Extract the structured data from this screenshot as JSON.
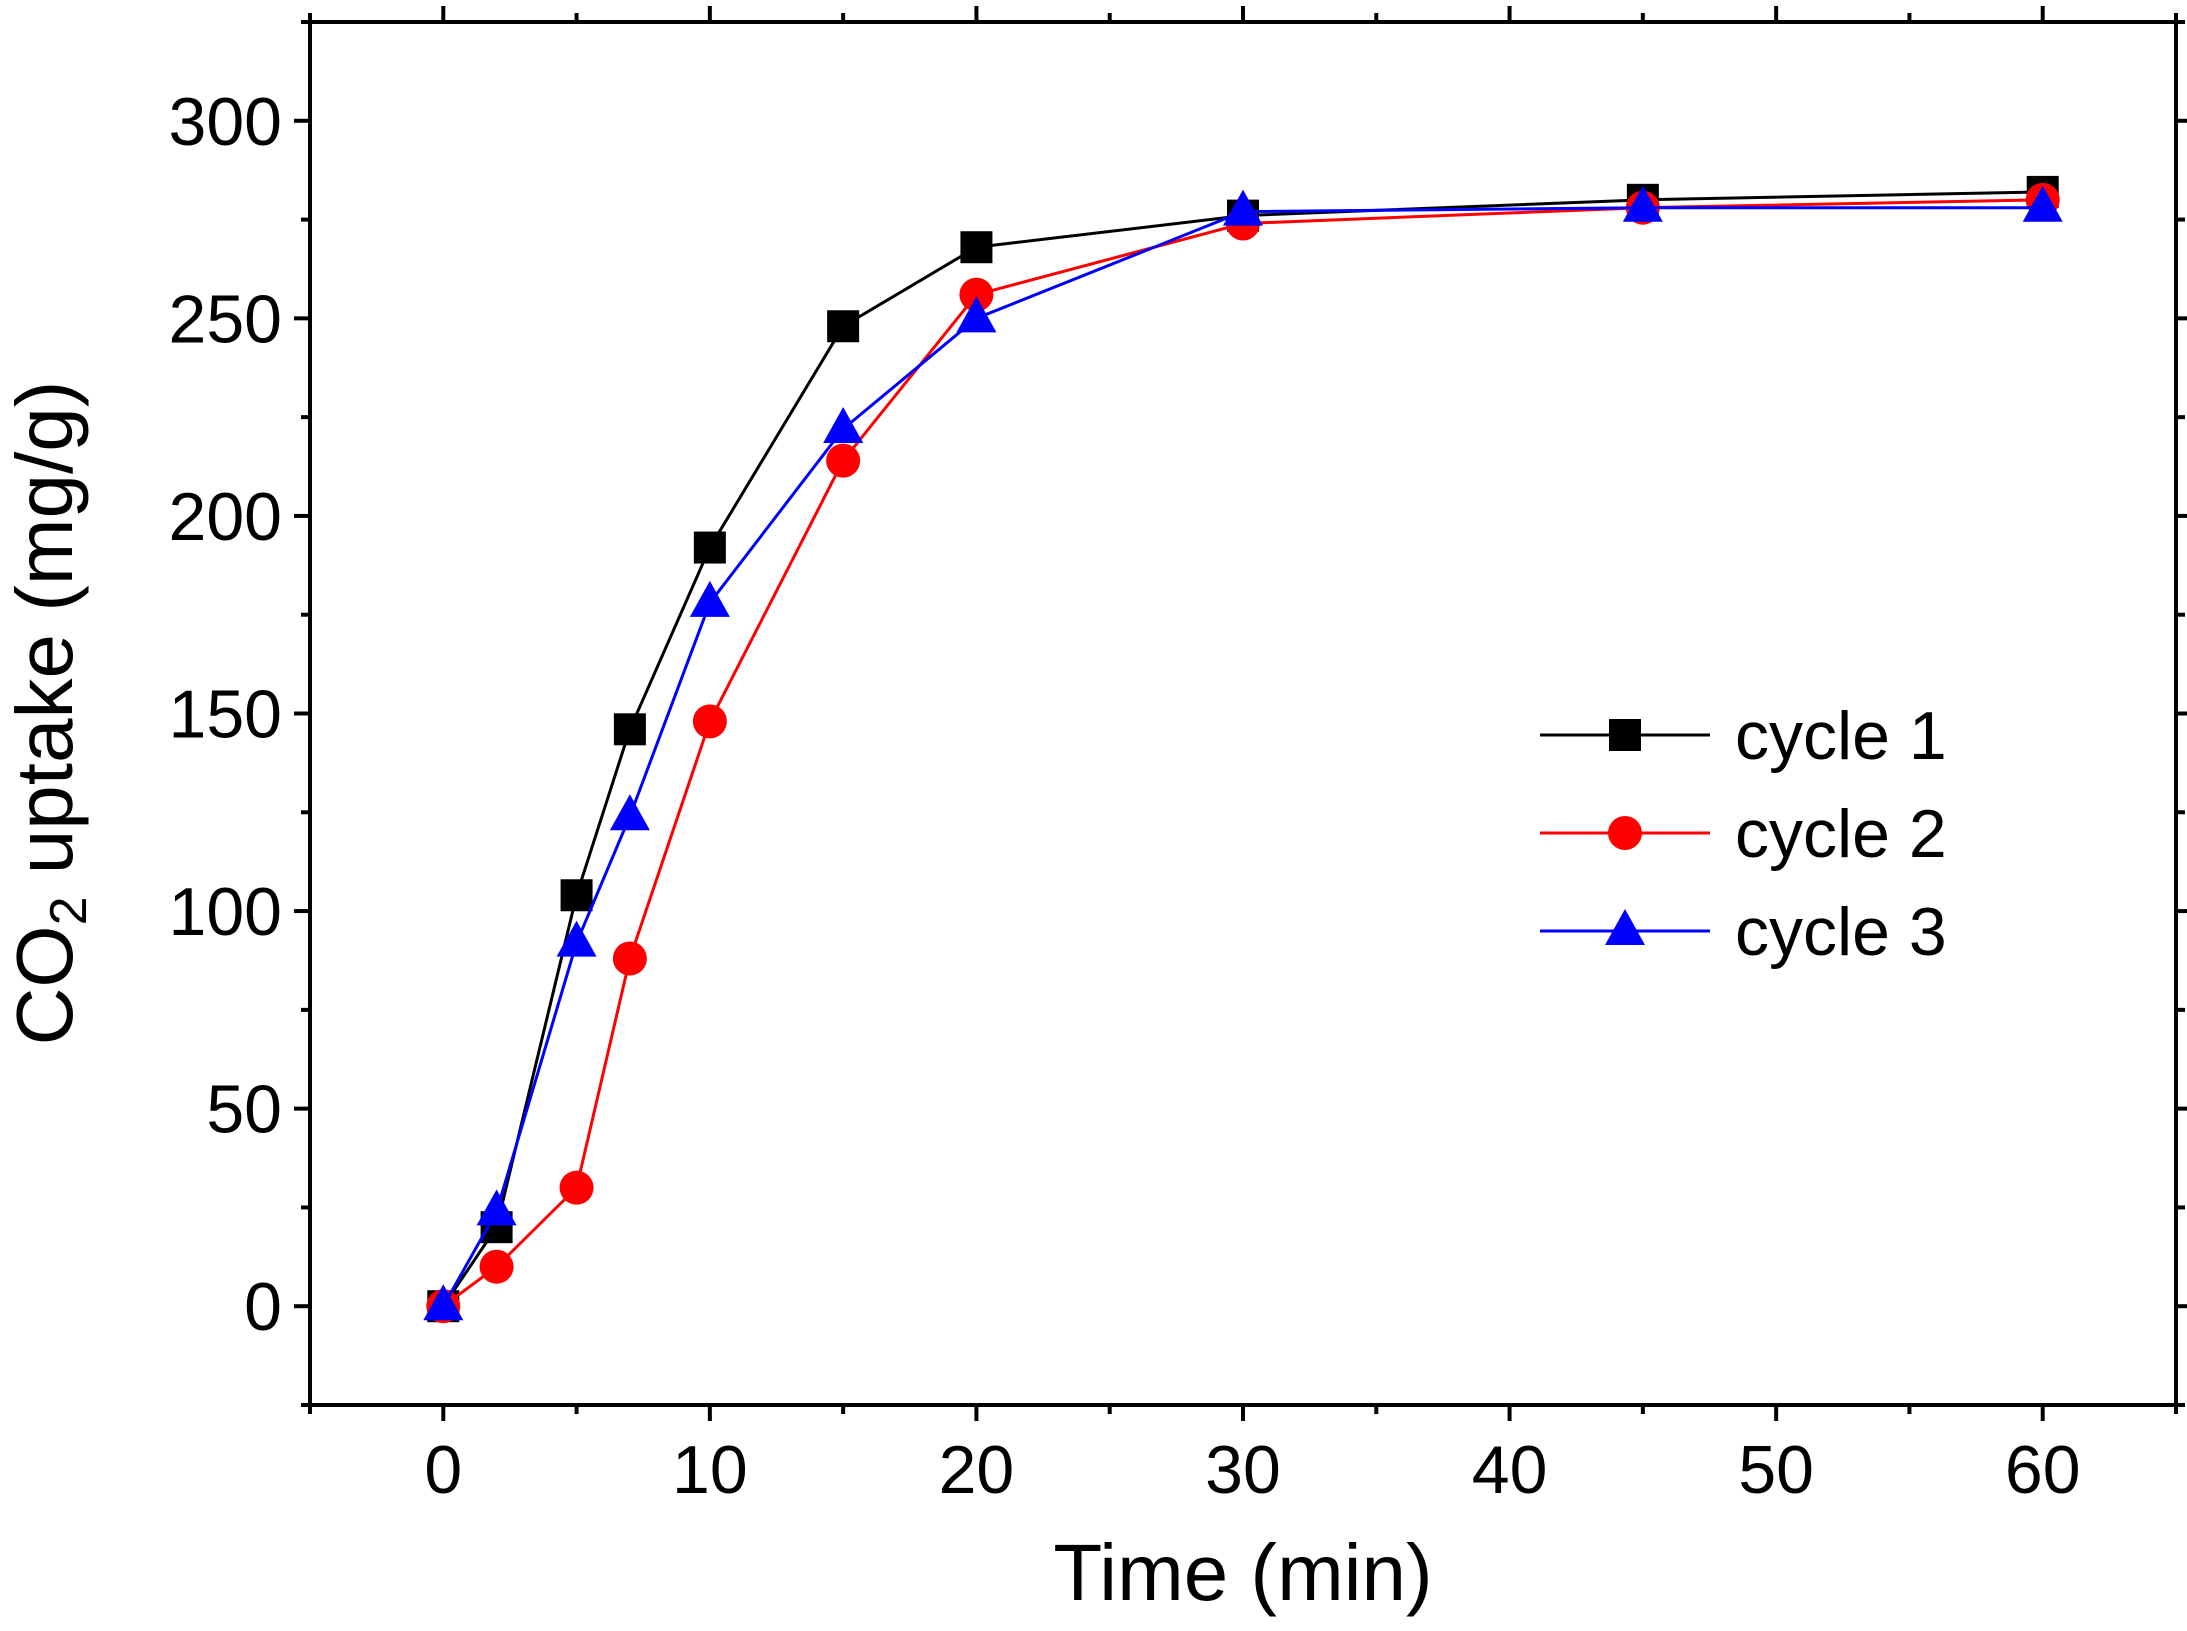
{
  "chart_data": {
    "type": "line",
    "xlabel": "Time (min)",
    "ylabel": {
      "prefix": "CO",
      "subscript": "2",
      "suffix": " uptake (mg/g)"
    },
    "xlim": [
      -5,
      65
    ],
    "ylim": [
      -25,
      325
    ],
    "xticks": [
      0,
      10,
      20,
      30,
      40,
      50,
      60
    ],
    "yticks": [
      0,
      50,
      100,
      150,
      200,
      250,
      300
    ],
    "grid": false,
    "legend_position": "center-right",
    "series": [
      {
        "name": "cycle 1",
        "color": "#000000",
        "marker": "square",
        "x": [
          0,
          2,
          5,
          7,
          10,
          15,
          20,
          30,
          45,
          60
        ],
        "y": [
          0,
          20,
          104,
          146,
          192,
          248,
          268,
          276,
          280,
          282
        ]
      },
      {
        "name": "cycle 2",
        "color": "#ff0000",
        "marker": "circle",
        "x": [
          0,
          2,
          5,
          7,
          10,
          15,
          20,
          30,
          45,
          60
        ],
        "y": [
          0,
          10,
          30,
          88,
          148,
          214,
          256,
          274,
          278,
          280
        ]
      },
      {
        "name": "cycle 3",
        "color": "#0000ff",
        "marker": "triangle",
        "x": [
          0,
          2,
          5,
          7,
          10,
          15,
          20,
          30,
          45,
          60
        ],
        "y": [
          0,
          24,
          92,
          124,
          178,
          222,
          250,
          277,
          278,
          278
        ]
      }
    ]
  }
}
